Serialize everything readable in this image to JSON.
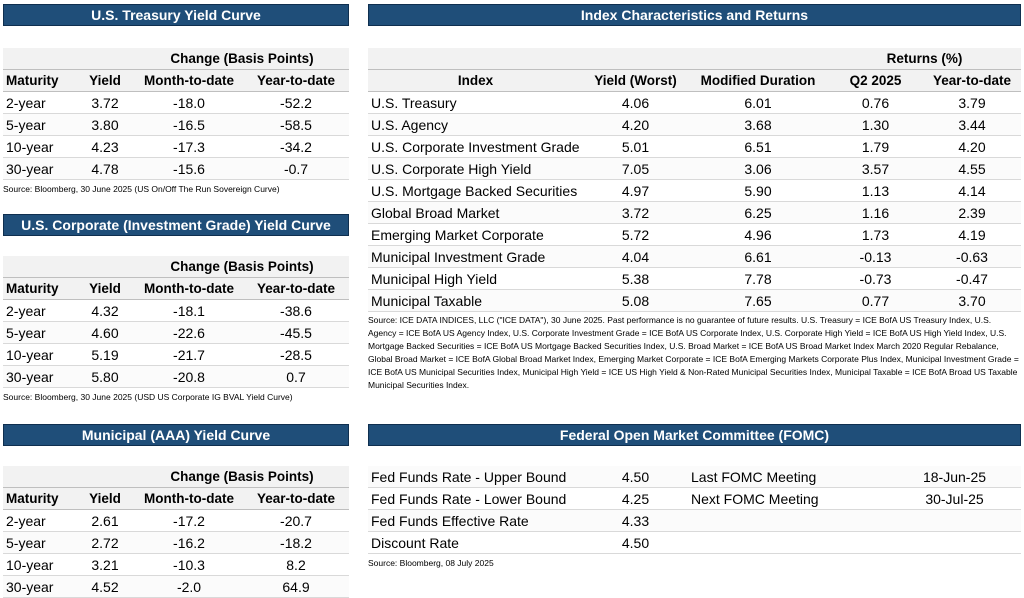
{
  "treasury": {
    "title": "U.S. Treasury Yield Curve",
    "group_header": "Change (Basis Points)",
    "columns": [
      "Maturity",
      "Yield",
      "Month-to-date",
      "Year-to-date"
    ],
    "rows": [
      [
        "2-year",
        "3.72",
        "-18.0",
        "-52.2"
      ],
      [
        "5-year",
        "3.80",
        "-16.5",
        "-58.5"
      ],
      [
        "10-year",
        "4.23",
        "-17.3",
        "-34.2"
      ],
      [
        "30-year",
        "4.78",
        "-15.6",
        "-0.7"
      ]
    ],
    "source": "Source: Bloomberg, 30 June 2025 (US On/Off The Run Sovereign Curve)"
  },
  "corporate": {
    "title": "U.S. Corporate (Investment Grade) Yield Curve",
    "group_header": "Change (Basis Points)",
    "columns": [
      "Maturity",
      "Yield",
      "Month-to-date",
      "Year-to-date"
    ],
    "rows": [
      [
        "2-year",
        "4.32",
        "-18.1",
        "-38.6"
      ],
      [
        "5-year",
        "4.60",
        "-22.6",
        "-45.5"
      ],
      [
        "10-year",
        "5.19",
        "-21.7",
        "-28.5"
      ],
      [
        "30-year",
        "5.80",
        "-20.8",
        "0.7"
      ]
    ],
    "source": "Source: Bloomberg, 30 June 2025 (USD US Corporate IG BVAL Yield Curve)"
  },
  "municipal": {
    "title": "Municipal (AAA) Yield Curve",
    "group_header": "Change (Basis Points)",
    "columns": [
      "Maturity",
      "Yield",
      "Month-to-date",
      "Year-to-date"
    ],
    "rows": [
      [
        "2-year",
        "2.61",
        "-17.2",
        "-20.7"
      ],
      [
        "5-year",
        "2.72",
        "-16.2",
        "-18.2"
      ],
      [
        "10-year",
        "3.21",
        "-10.3",
        "8.2"
      ],
      [
        "30-year",
        "4.52",
        "-2.0",
        "64.9"
      ]
    ]
  },
  "index": {
    "title": "Index Characteristics and Returns",
    "group_header": "Returns (%)",
    "columns": [
      "Index",
      "Yield (Worst)",
      "Modified Duration",
      "Q2 2025",
      "Year-to-date"
    ],
    "rows": [
      [
        "U.S. Treasury",
        "4.06",
        "6.01",
        "0.76",
        "3.79"
      ],
      [
        "U.S. Agency",
        "4.20",
        "3.68",
        "1.30",
        "3.44"
      ],
      [
        "U.S. Corporate Investment Grade",
        "5.01",
        "6.51",
        "1.79",
        "4.20"
      ],
      [
        "U.S. Corporate High Yield",
        "7.05",
        "3.06",
        "3.57",
        "4.55"
      ],
      [
        "U.S. Mortgage Backed Securities",
        "4.97",
        "5.90",
        "1.13",
        "4.14"
      ],
      [
        "Global Broad Market",
        "3.72",
        "6.25",
        "1.16",
        "2.39"
      ],
      [
        "Emerging Market Corporate",
        "5.72",
        "4.96",
        "1.73",
        "4.19"
      ],
      [
        "Municipal Investment Grade",
        "4.04",
        "6.61",
        "-0.13",
        "-0.63"
      ],
      [
        "Municipal High Yield",
        "5.38",
        "7.78",
        "-0.73",
        "-0.47"
      ],
      [
        "Municipal Taxable",
        "5.08",
        "7.65",
        "0.77",
        "3.70"
      ]
    ],
    "source": "Source: ICE DATA INDICES, LLC (\"ICE DATA\"), 30 June 2025.  Past performance is no guarantee of future results. U.S. Treasury  = ICE BofA US Treasury Index, U.S. Agency = ICE BofA US Agency Index, U.S. Corporate Investment Grade = ICE BofA US Corporate Index, U.S. Corporate High Yield = ICE BofA US High Yield Index, U.S. Mortgage Backed Securities = ICE BofA US Mortgage Backed Securities Index, U.S. Broad Market = ICE BofA US Broad Market Index March 2020 Regular Rebalance, Global Broad Market = ICE BofA Global Broad Market Index, Emerging Market Corporate = ICE BofA Emerging Markets Corporate Plus Index, Municipal Investment Grade = ICE BofA US Municipal Securities Index, Municipal High Yield = ICE US High Yield & Non-Rated Municipal Securities Index, Municipal Taxable = ICE BofA Broad US Taxable Municipal Securities Index."
  },
  "fomc": {
    "title": "Federal Open Market Committee (FOMC)",
    "rows": [
      [
        "Fed Funds Rate - Upper Bound",
        "4.50",
        "Last FOMC Meeting",
        "18-Jun-25"
      ],
      [
        "Fed Funds Rate - Lower Bound",
        "4.25",
        "Next FOMC Meeting",
        "30-Jul-25"
      ],
      [
        "Fed Funds Effective Rate",
        "4.33",
        "",
        ""
      ],
      [
        "Discount Rate",
        "4.50",
        "",
        ""
      ]
    ],
    "source": "Source: Bloomberg, 08 July 2025"
  }
}
